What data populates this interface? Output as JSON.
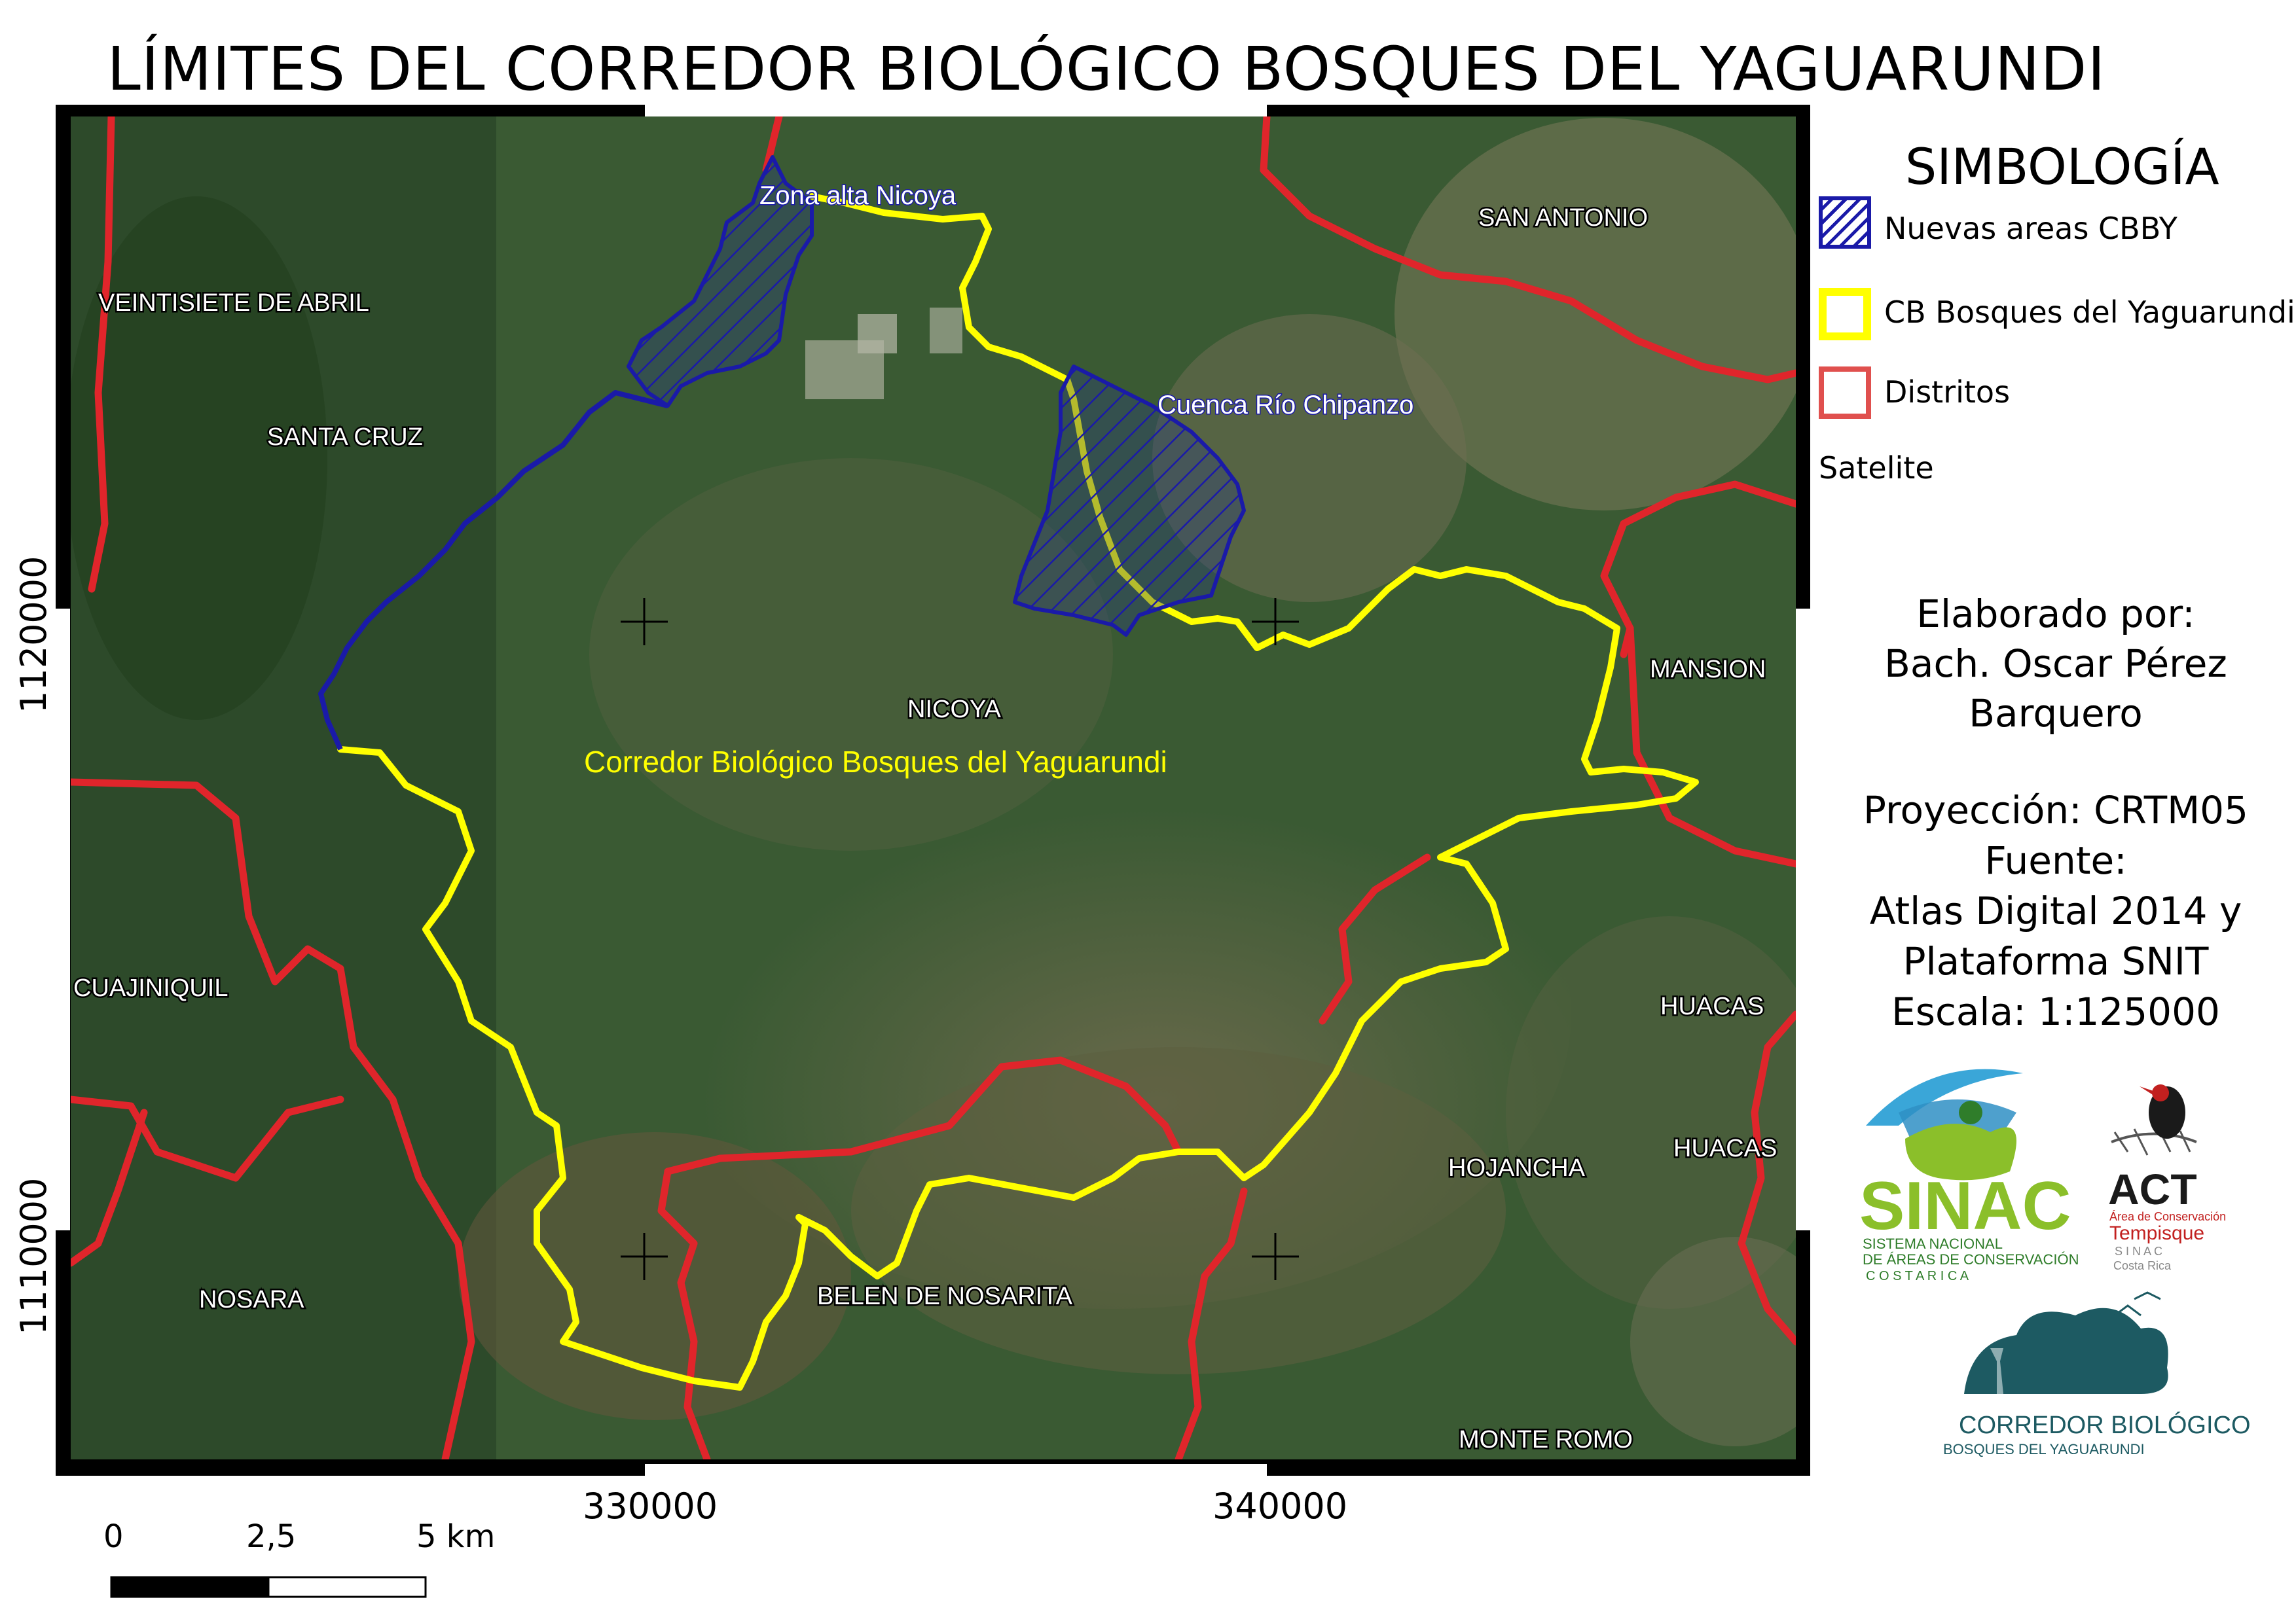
{
  "title": "LÍMITES DEL CORREDOR BIOLÓGICO BOSQUES DEL YAGUARUNDI",
  "map": {
    "basemap": "Satelite",
    "colors": {
      "corridor": "#ffff00",
      "districts": "#e0252b",
      "new_areas": "#1a1aa8"
    },
    "x_ticks": [
      "330000",
      "340000"
    ],
    "y_ticks": [
      "1120000",
      "1110000"
    ],
    "labels": {
      "zona_alta": "Zona alta Nicoya",
      "cuenca": "Cuenca Río Chipanzo",
      "corridor": "Corredor Biológico Bosques del Yaguarundi",
      "veintisiete": "VEINTISIETE DE ABRIL",
      "santa_cruz": "SANTA CRUZ",
      "san_antonio": "SAN ANTONIO",
      "nicoya": "NICOYA",
      "mansion": "MANSION",
      "cuajiniquil": "CUAJINIQUIL",
      "huacas_1": "HUACAS",
      "huacas_2": "HUACAS",
      "hojancha": "HOJANCHA",
      "nosara": "NOSARA",
      "belen": "BELEN DE NOSARITA",
      "monte_romo": "MONTE ROMO"
    }
  },
  "legend": {
    "title": "SIMBOLOGÍA",
    "items": [
      {
        "label": "Nuevas areas CBBY",
        "color": "#1a1aa8"
      },
      {
        "label": "CB Bosques del Yaguarundi",
        "color": "#ffff00"
      },
      {
        "label": "Distritos",
        "color": "#e0504e"
      },
      {
        "label": "Satelite"
      }
    ]
  },
  "credits": {
    "line1": "Elaborado por:",
    "line2": "Bach. Oscar Pérez",
    "line3": "Barquero",
    "projection": "Proyección: CRTM05",
    "source_label": "Fuente:",
    "source1": "Atlas Digital 2014 y",
    "source2": "Plataforma SNIT",
    "scale": "Escala: 1:125000"
  },
  "logos": {
    "sinac": {
      "name": "SINAC",
      "line1": "SISTEMA NACIONAL",
      "line2": "DE ÁREAS DE CONSERVACIÓN",
      "line3": "C O S T A   R I C A"
    },
    "act": {
      "name": "ACT",
      "line1": "Área de Conservación",
      "line2": "Tempisque",
      "line3": "S I N A C",
      "line4": "Costa Rica"
    },
    "corredor": {
      "line1": "CORREDOR BIOLÓGICO",
      "line2": "BOSQUES DEL YAGUARUNDI"
    }
  },
  "scalebar": {
    "ticks": [
      "0",
      "2,5",
      "5 km"
    ]
  }
}
